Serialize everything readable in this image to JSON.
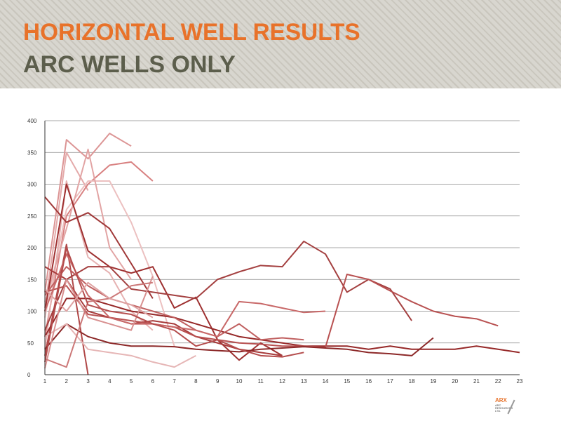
{
  "header": {
    "title_line1": "HORIZONTAL WELL RESULTS",
    "title_line2": "ARC WELLS ONLY",
    "title1_color": "#e8722a",
    "title2_color": "#5c5e4c"
  },
  "logo": {
    "brand": "ARX",
    "line1": "ARC",
    "line2": "RESOURCES",
    "line3": "LTD."
  },
  "chart_data": {
    "type": "line",
    "title": "",
    "xlabel": "",
    "ylabel": "",
    "xlim": [
      1,
      23
    ],
    "ylim": [
      0,
      400
    ],
    "x_ticks": [
      1,
      2,
      3,
      4,
      5,
      6,
      7,
      8,
      9,
      10,
      11,
      12,
      13,
      14,
      15,
      16,
      17,
      18,
      19,
      20,
      21,
      22,
      23
    ],
    "y_ticks": [
      0,
      50,
      100,
      150,
      200,
      250,
      300,
      350,
      400
    ],
    "grid": "horizontal",
    "legend": "none",
    "series": [
      {
        "color": "#e4aaaa",
        "values": [
          [
            1,
            105
          ],
          [
            2,
            350
          ],
          [
            3,
            290
          ]
        ]
      },
      {
        "color": "#dc9595",
        "values": [
          [
            1,
            130
          ],
          [
            2,
            370
          ],
          [
            3,
            340
          ],
          [
            4,
            380
          ],
          [
            5,
            360
          ]
        ]
      },
      {
        "color": "#d88080",
        "values": [
          [
            1,
            60
          ],
          [
            2,
            250
          ],
          [
            3,
            300
          ],
          [
            4,
            330
          ],
          [
            5,
            335
          ],
          [
            6,
            305
          ]
        ]
      },
      {
        "color": "#ecc0c0",
        "values": [
          [
            1,
            90
          ],
          [
            2,
            260
          ],
          [
            3,
            305
          ],
          [
            4,
            305
          ],
          [
            5,
            240
          ],
          [
            6,
            155
          ],
          [
            7,
            45
          ]
        ]
      },
      {
        "color": "#e6b2b2",
        "values": [
          [
            1,
            40
          ],
          [
            2,
            305
          ],
          [
            3,
            185
          ],
          [
            4,
            160
          ],
          [
            5,
            100
          ],
          [
            6,
            70
          ]
        ]
      },
      {
        "color": "#e2a4a4",
        "values": [
          [
            1,
            115
          ],
          [
            2,
            230
          ],
          [
            3,
            355
          ],
          [
            4,
            200
          ],
          [
            5,
            150
          ]
        ]
      },
      {
        "color": "#a03838",
        "values": [
          [
            1,
            280
          ],
          [
            2,
            240
          ],
          [
            3,
            255
          ],
          [
            4,
            230
          ],
          [
            5,
            175
          ],
          [
            6,
            120
          ]
        ]
      },
      {
        "color": "#9e3030",
        "values": [
          [
            1,
            100
          ],
          [
            2,
            300
          ],
          [
            3,
            195
          ],
          [
            4,
            170
          ],
          [
            5,
            160
          ],
          [
            6,
            170
          ],
          [
            7,
            105
          ],
          [
            8,
            122
          ],
          [
            9,
            55
          ],
          [
            10,
            23
          ],
          [
            11,
            50
          ],
          [
            12,
            30
          ]
        ]
      },
      {
        "color": "#a83c3c",
        "values": [
          [
            1,
            170
          ],
          [
            2,
            150
          ],
          [
            3,
            100
          ],
          [
            4,
            90
          ],
          [
            5,
            80
          ],
          [
            6,
            85
          ],
          [
            7,
            80
          ],
          [
            8,
            60
          ],
          [
            9,
            50
          ],
          [
            10,
            40
          ],
          [
            11,
            35
          ],
          [
            12,
            30
          ]
        ]
      },
      {
        "color": "#b04848",
        "values": [
          [
            1,
            30
          ],
          [
            2,
            205
          ],
          [
            3,
            0
          ]
        ]
      },
      {
        "color": "#a44040",
        "values": [
          [
            1,
            70
          ],
          [
            2,
            150
          ],
          [
            3,
            170
          ],
          [
            4,
            170
          ],
          [
            5,
            135
          ],
          [
            6,
            130
          ],
          [
            7,
            125
          ],
          [
            8,
            120
          ],
          [
            9,
            150
          ],
          [
            10,
            162
          ],
          [
            11,
            172
          ],
          [
            12,
            170
          ],
          [
            13,
            210
          ],
          [
            14,
            190
          ],
          [
            15,
            130
          ],
          [
            16,
            150
          ],
          [
            17,
            135
          ],
          [
            18,
            85
          ]
        ]
      },
      {
        "color": "#962828",
        "values": [
          [
            1,
            60
          ],
          [
            2,
            120
          ],
          [
            3,
            120
          ],
          [
            4,
            110
          ],
          [
            5,
            100
          ],
          [
            6,
            95
          ],
          [
            7,
            90
          ],
          [
            8,
            80
          ],
          [
            9,
            70
          ],
          [
            10,
            60
          ],
          [
            11,
            55
          ],
          [
            12,
            50
          ],
          [
            13,
            45
          ],
          [
            14,
            45
          ],
          [
            15,
            45
          ],
          [
            16,
            40
          ],
          [
            17,
            45
          ],
          [
            18,
            40
          ],
          [
            19,
            40
          ],
          [
            20,
            40
          ],
          [
            21,
            45
          ],
          [
            22,
            40
          ],
          [
            23,
            35
          ]
        ]
      },
      {
        "color": "#b85050",
        "values": [
          [
            1,
            130
          ],
          [
            2,
            140
          ],
          [
            3,
            95
          ],
          [
            4,
            90
          ],
          [
            5,
            85
          ],
          [
            6,
            80
          ],
          [
            7,
            75
          ],
          [
            8,
            60
          ],
          [
            9,
            55
          ],
          [
            10,
            50
          ],
          [
            11,
            48
          ],
          [
            12,
            45
          ],
          [
            13,
            45
          ],
          [
            14,
            43
          ],
          [
            15,
            158
          ],
          [
            16,
            150
          ],
          [
            17,
            132
          ],
          [
            18,
            115
          ],
          [
            19,
            100
          ],
          [
            20,
            92
          ],
          [
            21,
            88
          ],
          [
            22,
            77
          ]
        ]
      },
      {
        "color": "#8c2828",
        "values": [
          [
            1,
            40
          ],
          [
            2,
            80
          ],
          [
            3,
            60
          ],
          [
            4,
            50
          ],
          [
            5,
            45
          ],
          [
            6,
            45
          ],
          [
            7,
            44
          ],
          [
            8,
            40
          ],
          [
            9,
            38
          ],
          [
            10,
            36
          ],
          [
            11,
            40
          ],
          [
            12,
            42
          ],
          [
            13,
            44
          ],
          [
            14,
            42
          ],
          [
            15,
            40
          ],
          [
            16,
            35
          ],
          [
            17,
            33
          ],
          [
            18,
            30
          ],
          [
            19,
            58
          ]
        ]
      },
      {
        "color": "#c06060",
        "values": [
          [
            1,
            125
          ],
          [
            2,
            170
          ],
          [
            3,
            140
          ],
          [
            4,
            120
          ],
          [
            5,
            110
          ],
          [
            6,
            100
          ],
          [
            7,
            90
          ],
          [
            8,
            70
          ],
          [
            9,
            60
          ],
          [
            10,
            80
          ],
          [
            11,
            55
          ],
          [
            12,
            58
          ],
          [
            13,
            55
          ]
        ]
      },
      {
        "color": "#c86868",
        "values": [
          [
            1,
            100
          ],
          [
            2,
            190
          ],
          [
            3,
            125
          ],
          [
            4,
            90
          ],
          [
            5,
            80
          ],
          [
            6,
            80
          ],
          [
            7,
            75
          ],
          [
            8,
            70
          ],
          [
            9,
            60
          ],
          [
            10,
            115
          ],
          [
            11,
            112
          ],
          [
            12,
            105
          ],
          [
            13,
            98
          ],
          [
            14,
            100
          ]
        ]
      },
      {
        "color": "#e6b6b6",
        "values": [
          [
            1,
            60
          ],
          [
            2,
            80
          ],
          [
            3,
            40
          ],
          [
            4,
            35
          ],
          [
            5,
            30
          ],
          [
            6,
            20
          ],
          [
            7,
            12
          ],
          [
            8,
            30
          ]
        ]
      },
      {
        "color": "#d89090",
        "values": [
          [
            1,
            10
          ],
          [
            2,
            150
          ],
          [
            3,
            90
          ],
          [
            4,
            80
          ],
          [
            5,
            70
          ],
          [
            6,
            155
          ]
        ]
      },
      {
        "color": "#cc7878",
        "values": [
          [
            1,
            25
          ],
          [
            2,
            12
          ],
          [
            3,
            115
          ],
          [
            4,
            120
          ],
          [
            5,
            140
          ],
          [
            6,
            145
          ]
        ]
      },
      {
        "color": "#b44c4c",
        "values": [
          [
            1,
            20
          ],
          [
            2,
            200
          ],
          [
            3,
            110
          ],
          [
            4,
            100
          ],
          [
            5,
            95
          ],
          [
            6,
            80
          ],
          [
            7,
            70
          ],
          [
            8,
            45
          ],
          [
            9,
            55
          ],
          [
            10,
            40
          ],
          [
            11,
            30
          ],
          [
            12,
            28
          ],
          [
            13,
            35
          ]
        ]
      },
      {
        "color": "#dea2a2",
        "values": [
          [
            1,
            135
          ],
          [
            2,
            100
          ],
          [
            3,
            145
          ],
          [
            4,
            120
          ],
          [
            5,
            110
          ],
          [
            6,
            90
          ]
        ]
      }
    ]
  }
}
